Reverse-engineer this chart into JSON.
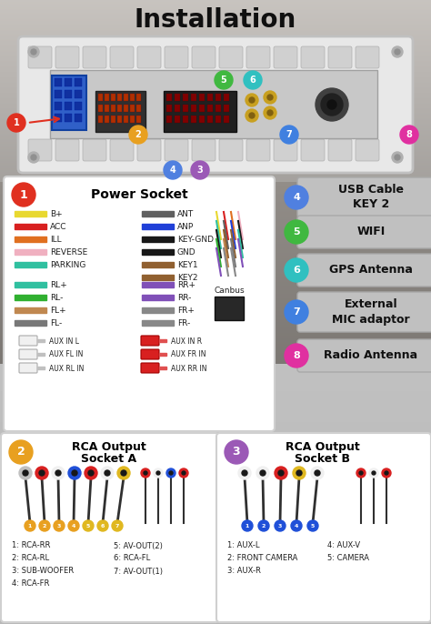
{
  "title": "Installation",
  "bg_top": "#c8c0b8",
  "bg_mid": "#a09080",
  "bg_bot": "#888078",
  "panel1_color": "#e03020",
  "panel2_color": "#e8a020",
  "panel3_color": "#9b59b6",
  "panel4_color": "#5080e0",
  "panel5_color": "#40b840",
  "panel6_color": "#30c0c0",
  "panel7_color": "#4080e0",
  "panel8_color": "#e030a0",
  "wire_rows_left": [
    {
      "label": "B+",
      "color": "#e8d830"
    },
    {
      "label": "ACC",
      "color": "#d82020"
    },
    {
      "label": "ILL",
      "color": "#e07020"
    },
    {
      "label": "REVERSE",
      "color": "#f0b0c0"
    },
    {
      "label": "PARKING",
      "color": "#30c0a0"
    }
  ],
  "wire_rows_right": [
    {
      "label": "ANT",
      "color": "#606060"
    },
    {
      "label": "ANP",
      "color": "#2040d8"
    },
    {
      "label": "KEY-GND",
      "color": "#181818"
    },
    {
      "label": "GND",
      "color": "#181818"
    },
    {
      "label": "KEY1",
      "color": "#906030"
    },
    {
      "label": "KEY2",
      "color": "#906030"
    }
  ],
  "wire_rows_left2": [
    {
      "label": "RL+",
      "color": "#30c0a0"
    },
    {
      "label": "RL-",
      "color": "#30b030"
    },
    {
      "label": "FL+",
      "color": "#c08850"
    },
    {
      "label": "FL-",
      "color": "#787878"
    }
  ],
  "wire_rows_right2": [
    {
      "label": "RR+",
      "color": "#8050b8"
    },
    {
      "label": "RR-",
      "color": "#8050b8"
    },
    {
      "label": "FR+",
      "color": "#888888"
    },
    {
      "label": "FR-",
      "color": "#888888"
    }
  ],
  "aux_left": [
    "AUX IN L",
    "AUX FL IN",
    "AUX RL IN"
  ],
  "aux_right": [
    "AUX IN R",
    "AUX FR IN",
    "AUX RR IN"
  ],
  "panel4_title": "USB Cable\nKEY 2",
  "panel5_title": "WIFI",
  "panel6_title": "GPS Antenna",
  "panel7_title": "External\nMIC adaptor",
  "panel8_title": "Radio Antenna",
  "rca_a_left": [
    "1: RCA-RR",
    "2: RCA-RL",
    "3: SUB-WOOFER",
    "4: RCA-FR"
  ],
  "rca_a_right": [
    "5: AV-OUT(2)",
    "6: RCA-FL",
    "7: AV-OUT(1)"
  ],
  "rca_b_left": [
    "1: AUX-L",
    "2: FRONT CAMERA",
    "3: AUX-R"
  ],
  "rca_b_right": [
    "4: AUX-V",
    "5: CAMERA"
  ],
  "rca_a_colors": [
    "#c0c0c0",
    "#d82020",
    "#f0f0f0",
    "#2050d8",
    "#d82020",
    "#f0f0f0",
    "#e0b820"
  ],
  "rca_b_colors": [
    "#f0f0f0",
    "#f0f0f0",
    "#d82020",
    "#e0b820",
    "#f0f0f0"
  ]
}
